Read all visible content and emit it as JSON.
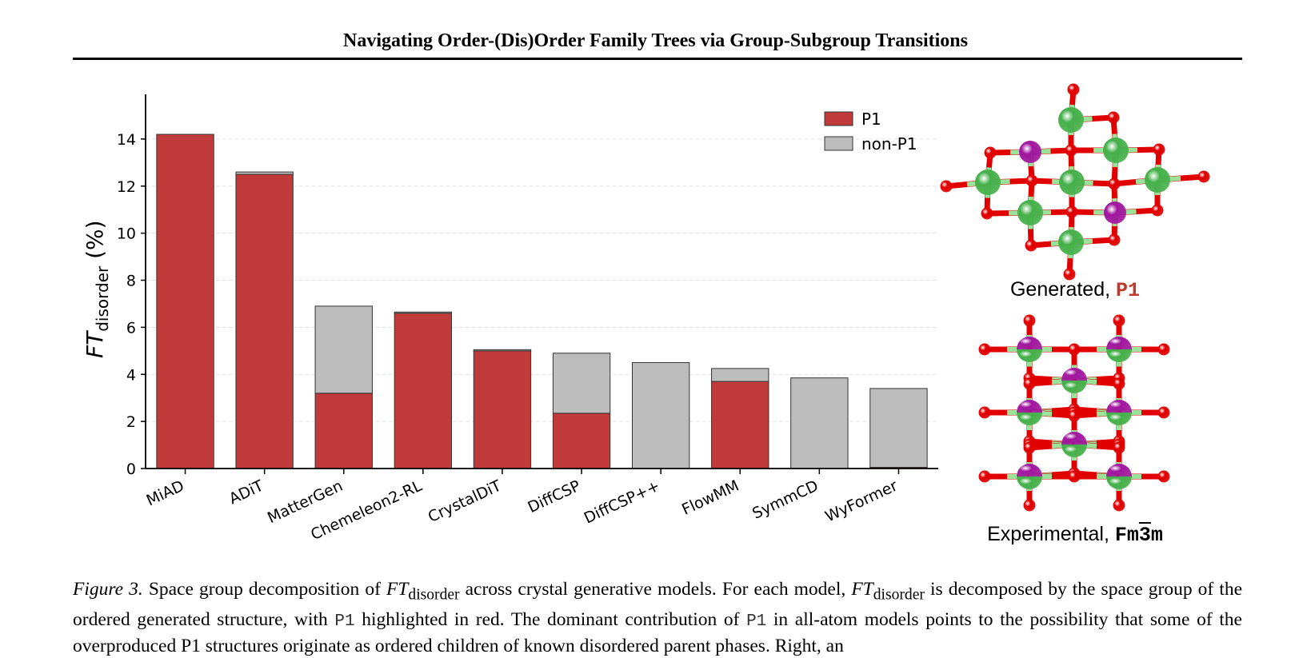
{
  "header": {
    "title": "Navigating Order-(Dis)Order Family Trees via Group-Subgroup Transitions"
  },
  "chart_data": {
    "type": "bar",
    "stacked": true,
    "categories": [
      "MiAD",
      "ADiT",
      "MatterGen",
      "Chemeleon2-RL",
      "CrystalDiT",
      "DiffCSP",
      "DiffCSP++",
      "FlowMM",
      "SymmCD",
      "WyFormer"
    ],
    "series": [
      {
        "name": "P1",
        "color": "#c23b3b",
        "values": [
          14.2,
          12.5,
          3.2,
          6.6,
          5.0,
          2.35,
          0.0,
          3.7,
          0.0,
          0.05
        ]
      },
      {
        "name": "non-P1",
        "color": "#bdbdbd",
        "values": [
          0.0,
          0.1,
          3.7,
          0.05,
          0.05,
          2.55,
          4.5,
          0.55,
          3.85,
          3.35
        ]
      }
    ],
    "ylabel_main": "FT",
    "ylabel_sub": "disorder",
    "ylabel_unit": "(%)",
    "ylim": [
      0,
      14.2
    ],
    "yticks": [
      "0",
      "2",
      "4",
      "6",
      "8",
      "10",
      "12",
      "14"
    ],
    "grid": true,
    "legend_position": "top-right"
  },
  "structures": {
    "generated": {
      "label": "Generated, ",
      "group": "P1"
    },
    "experimental": {
      "label": "Experimental, ",
      "group_prefix": "Fm",
      "group_bar": "3",
      "group_suffix": "m"
    },
    "colors": {
      "oxygen": "#e00000",
      "green": "#45b04a",
      "purple": "#a0169e",
      "bond": "#9be39b"
    }
  },
  "caption": {
    "label": "Figure 3.",
    "t1": " Space group decomposition of ",
    "ft": "FT",
    "sub": "disorder",
    "t2": " across crystal generative models. For each model, ",
    "t3": " is decomposed by the space group of the ordered generated structure, with ",
    "p1a": "P1",
    "t4": " highlighted in red. The dominant contribution of ",
    "p1b": "P1",
    "t5": " in all-atom models points to the possibility that some of the overproduced P1 structures originate as ordered children of known disordered parent phases. Right, an"
  }
}
